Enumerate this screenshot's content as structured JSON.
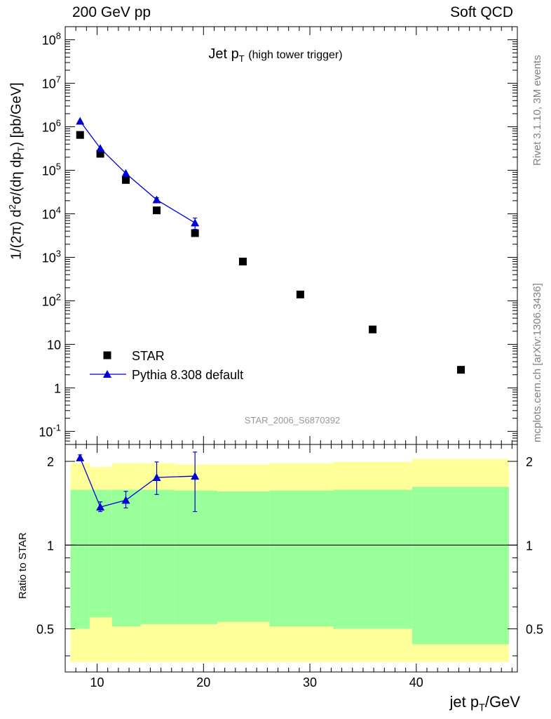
{
  "header": {
    "left": "200 GeV pp",
    "right": "Soft QCD"
  },
  "side_text": {
    "rivet": "Rivet 3.1.10,  3M events",
    "mcplots": "mcplots.cern.ch [arXiv:1306.3436]"
  },
  "plot_title": {
    "main": "Jet p",
    "sub": "T",
    "paren": "(high tower trigger)"
  },
  "y_label_top": {
    "a": "1/(2π) d",
    "b": "2",
    "c": "σ/(dη dp",
    "d": "T",
    "e": ") [pb/GeV]"
  },
  "y_label_bottom": "Ratio to STAR",
  "x_label": {
    "a": "jet p",
    "b": "T",
    "c": "/GeV"
  },
  "analysis_id": "STAR_2006_S6870392",
  "legend": {
    "star": "STAR",
    "pythia": "Pythia 8.308 default"
  },
  "colors": {
    "pythia": "#0000d8",
    "star": "#000000",
    "band_outer": "#ffff99",
    "band_inner": "#99ff99",
    "analysis": "#999999"
  },
  "chart_data": [
    {
      "type": "scatter",
      "panel": "main",
      "title": "Jet pT (high tower trigger)",
      "xlabel": "jet pT/GeV",
      "ylabel": "1/(2π) d2σ/(dη dpT) [pb/GeV]",
      "xlim": [
        7,
        49.5
      ],
      "ylim": [
        0.05,
        200000000
      ],
      "ylog": true,
      "x_ticks": [
        "10",
        "20",
        "30",
        "40"
      ],
      "y_ticks": [
        "10^-1",
        "1",
        "10",
        "10^2",
        "10^3",
        "10^4",
        "10^5",
        "10^6",
        "10^7",
        "10^8"
      ],
      "series": [
        {
          "name": "STAR",
          "marker": "square",
          "x": [
            8.4,
            10.3,
            12.7,
            15.6,
            19.2,
            23.7,
            29.1,
            35.9,
            44.2
          ],
          "y": [
            650000,
            240000,
            60000,
            12000,
            3600,
            800,
            140,
            22,
            2.6
          ]
        },
        {
          "name": "Pythia 8.308 default",
          "marker": "triangle",
          "x": [
            8.4,
            10.3,
            12.7,
            15.6,
            19.2
          ],
          "y": [
            1350000,
            320000,
            85000,
            21000,
            6200
          ],
          "yerr": [
            0,
            0,
            0,
            2500,
            1800
          ]
        }
      ]
    },
    {
      "type": "line",
      "panel": "ratio",
      "ylabel": "Ratio to STAR",
      "xlim": [
        7,
        49.5
      ],
      "ylim": [
        0.35,
        2.3
      ],
      "ylog": true,
      "y_ticks": [
        "0.5",
        "1",
        "2"
      ],
      "bins": [
        7.5,
        9.3,
        11.4,
        14.1,
        17.3,
        21.3,
        26.2,
        32.2,
        39.6,
        48.7
      ],
      "band_outer_lo": [
        0.38,
        0.38,
        0.38,
        0.38,
        0.38,
        0.38,
        0.38,
        0.38,
        0.38
      ],
      "band_outer_hi": [
        1.97,
        1.91,
        1.97,
        1.97,
        1.95,
        1.95,
        1.97,
        1.99,
        2.04
      ],
      "band_inner_lo": [
        0.5,
        0.55,
        0.51,
        0.52,
        0.52,
        0.53,
        0.51,
        0.5,
        0.44
      ],
      "band_inner_hi": [
        1.58,
        1.58,
        1.58,
        1.58,
        1.57,
        1.56,
        1.57,
        1.58,
        1.62
      ],
      "series": [
        {
          "name": "Pythia 8.308 default",
          "x": [
            8.4,
            10.3,
            12.7,
            15.6,
            19.2
          ],
          "y": [
            2.06,
            1.37,
            1.45,
            1.75,
            1.77
          ],
          "yerr_lo": [
            0.05,
            0.05,
            0.09,
            0.23,
            0.45
          ],
          "yerr_hi": [
            0.05,
            0.06,
            0.11,
            0.24,
            0.39
          ]
        }
      ]
    }
  ]
}
